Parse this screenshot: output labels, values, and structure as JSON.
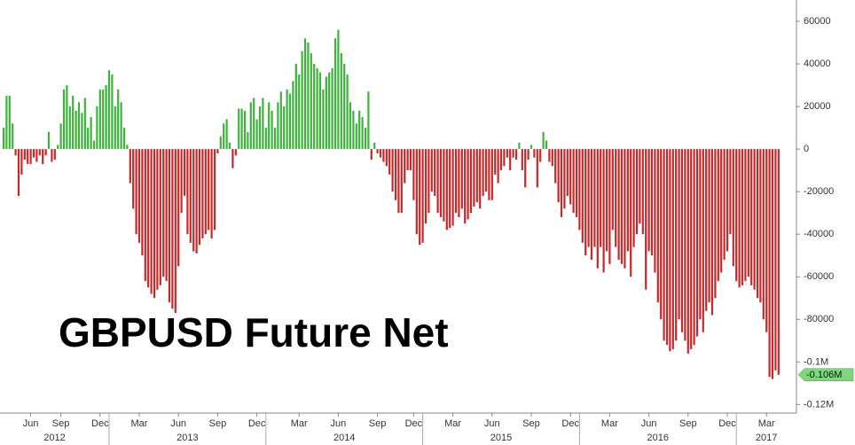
{
  "chart_data": {
    "type": "bar",
    "title": "GBPUSD Future Net",
    "positive_color": "#3cb43c",
    "negative_color": "#c8282a",
    "ylim": [
      -124000,
      70000
    ],
    "yticks": [
      60000,
      40000,
      20000,
      0,
      -20000,
      -40000,
      -60000,
      -80000,
      {
        "value": -100000,
        "label": "-0.1M"
      },
      {
        "value": -120000,
        "label": "-0.12M"
      }
    ],
    "annotation": {
      "value": -106000,
      "label": "-0.106M",
      "color": "#7fd67f"
    },
    "years": [
      "2012",
      "2013",
      "2014",
      "2015",
      "2016",
      "2017"
    ],
    "categories": [
      null,
      null,
      null,
      null,
      null,
      null,
      null,
      null,
      null,
      "Jun",
      null,
      null,
      null,
      null,
      null,
      null,
      null,
      null,
      null,
      "Sep",
      null,
      null,
      null,
      null,
      null,
      null,
      null,
      null,
      null,
      null,
      null,
      null,
      "Dec",
      null,
      null,
      null,
      null,
      null,
      null,
      null,
      null,
      null,
      null,
      null,
      null,
      "Mar",
      null,
      null,
      null,
      null,
      null,
      null,
      null,
      null,
      null,
      null,
      null,
      null,
      "Jun",
      null,
      null,
      null,
      null,
      null,
      null,
      null,
      null,
      null,
      null,
      null,
      null,
      "Sep",
      null,
      null,
      null,
      null,
      null,
      null,
      null,
      null,
      null,
      null,
      null,
      null,
      "Dec",
      null,
      null,
      null,
      null,
      null,
      null,
      null,
      null,
      null,
      null,
      null,
      null,
      null,
      "Mar",
      null,
      null,
      null,
      null,
      null,
      null,
      null,
      null,
      null,
      null,
      null,
      null,
      "Jun",
      null,
      null,
      null,
      null,
      null,
      null,
      null,
      null,
      null,
      null,
      null,
      null,
      "Sep",
      null,
      null,
      null,
      null,
      null,
      null,
      null,
      null,
      null,
      null,
      null,
      "Dec",
      null,
      null,
      null,
      null,
      null,
      null,
      null,
      null,
      null,
      null,
      null,
      null,
      "Mar",
      null,
      null,
      null,
      null,
      null,
      null,
      null,
      null,
      null,
      null,
      null,
      null,
      "Jun",
      null,
      null,
      null,
      null,
      null,
      null,
      null,
      null,
      null,
      null,
      null,
      null,
      "Sep",
      null,
      null,
      null,
      null,
      null,
      null,
      null,
      null,
      null,
      null,
      null,
      null,
      "Dec",
      null,
      null,
      null,
      null,
      null,
      null,
      null,
      null,
      null,
      null,
      null,
      null,
      "Mar",
      null,
      null,
      null,
      null,
      null,
      null,
      null,
      null,
      null,
      null,
      null,
      null,
      "Jun",
      null,
      null,
      null,
      null,
      null,
      null,
      null,
      null,
      null,
      null,
      null,
      null,
      "Sep",
      null,
      null,
      null,
      null,
      null,
      null,
      null,
      null,
      null,
      null,
      null,
      null,
      "Dec",
      null,
      null,
      null,
      null,
      null,
      null,
      null,
      null,
      null,
      null,
      null,
      null,
      "Mar",
      null,
      null,
      null,
      null
    ],
    "values": [
      10000,
      25000,
      25000,
      12000,
      -3000,
      -22000,
      -12000,
      -5000,
      -7000,
      -7000,
      -4000,
      -6000,
      -3000,
      -7000,
      -3000,
      8000,
      -6000,
      -5000,
      2000,
      12000,
      28000,
      30000,
      20000,
      25000,
      18000,
      22000,
      17000,
      24000,
      10000,
      15000,
      4000,
      20000,
      28000,
      28000,
      30000,
      37000,
      35000,
      20000,
      28000,
      22000,
      10000,
      2000,
      -16000,
      -28000,
      -40000,
      -44000,
      -50000,
      -62000,
      -65000,
      -68000,
      -70000,
      -66000,
      -64000,
      -60000,
      -62000,
      -72000,
      -75000,
      -77000,
      -55000,
      -30000,
      -22000,
      -40000,
      -44000,
      -48000,
      -49000,
      -45000,
      -42000,
      -40000,
      -38000,
      -42000,
      -38000,
      -2000,
      6000,
      12000,
      14000,
      3000,
      -9000,
      -3000,
      19000,
      19000,
      18000,
      8000,
      22000,
      24000,
      14000,
      20000,
      24000,
      10000,
      22000,
      18000,
      10000,
      22000,
      27000,
      20000,
      28000,
      26000,
      32000,
      40000,
      35000,
      46000,
      52000,
      50000,
      45000,
      40000,
      38000,
      36000,
      28000,
      34000,
      36000,
      38000,
      52000,
      56000,
      45000,
      40000,
      35000,
      22000,
      18000,
      12000,
      18000,
      15000,
      10000,
      27000,
      -5000,
      3000,
      -2000,
      -4000,
      -6000,
      -8000,
      -12000,
      -20000,
      -24000,
      -30000,
      -30000,
      -16000,
      -10000,
      -10000,
      -24000,
      -40000,
      -45000,
      -44000,
      -35000,
      -30000,
      -20000,
      -22000,
      -30000,
      -32000,
      -34000,
      -38000,
      -37000,
      -36000,
      -30000,
      -32000,
      -28000,
      -35000,
      -33000,
      -30000,
      -27000,
      -25000,
      -28000,
      -22000,
      -20000,
      -24000,
      -24000,
      -12000,
      -16000,
      -10000,
      -8000,
      -4000,
      -10000,
      -4000,
      -5000,
      3000,
      -10000,
      -18000,
      -5000,
      2000,
      -4000,
      -18000,
      -6000,
      8000,
      4000,
      -6000,
      -8000,
      -16000,
      -25000,
      -32000,
      -28000,
      -22000,
      -26000,
      -30000,
      -32000,
      -38000,
      -44000,
      -50000,
      -46000,
      -52000,
      -46000,
      -56000,
      -46000,
      -58000,
      -48000,
      -54000,
      -38000,
      -46000,
      -52000,
      -54000,
      -56000,
      -48000,
      -60000,
      -46000,
      -40000,
      -35000,
      -40000,
      -66000,
      -48000,
      -50000,
      -58000,
      -72000,
      -80000,
      -90000,
      -92000,
      -95000,
      -94000,
      -90000,
      -80000,
      -86000,
      -90000,
      -96000,
      -94000,
      -92000,
      -88000,
      -80000,
      -86000,
      -76000,
      -72000,
      -78000,
      -70000,
      -62000,
      -58000,
      -52000,
      -48000,
      -40000,
      -55000,
      -62000,
      -65000,
      -64000,
      -62000,
      -60000,
      -64000,
      -66000,
      -70000,
      -72000,
      -80000,
      -86000,
      -107000,
      -108000,
      -104000,
      -106000
    ]
  }
}
